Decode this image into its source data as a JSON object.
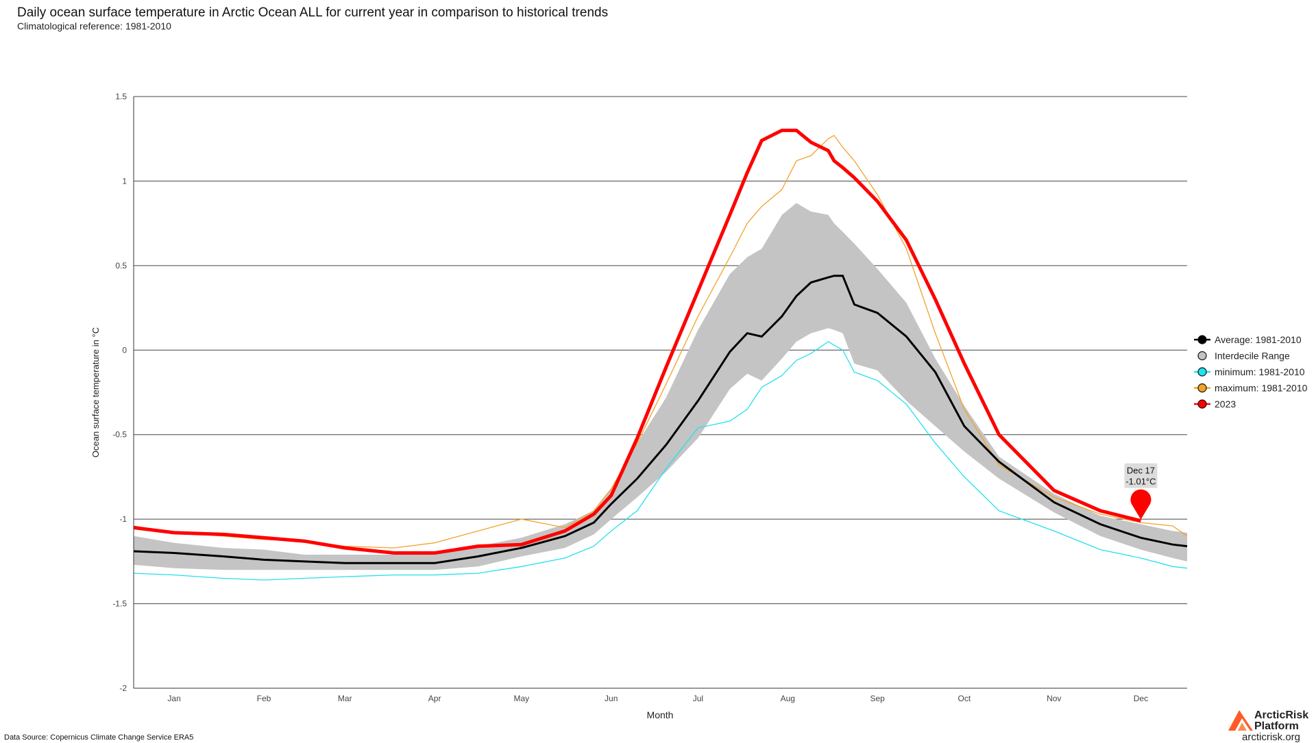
{
  "header": {
    "title": "Daily ocean surface temperature in Arctic Ocean ALL for current year in comparison to historical trends",
    "subtitle": "Climatological reference: 1981-2010"
  },
  "footer": {
    "source": "Data Source: Copernicus Climate Change Service ERA5",
    "logo_name": "ArcticRisk Platform",
    "logo_url": "arcticrisk.org"
  },
  "colors": {
    "average": "#000000",
    "interdecile": "#c4c4c4",
    "minimum": "#22e0ee",
    "maximum": "#f2a22a",
    "current": "#ff0000",
    "grid": "#444444"
  },
  "chart_data": {
    "type": "line",
    "xlabel": "Month",
    "ylabel": "Ocean surface temperature in °C",
    "ylim": [
      -2,
      1.5
    ],
    "xlim": [
      1,
      365
    ],
    "yticks": [
      1.5,
      1,
      0.5,
      0,
      -0.5,
      -1,
      -1.5,
      -2
    ],
    "ytick_labels": [
      "1.5",
      "1",
      "0.5",
      "0",
      "-0.5",
      "-1",
      "-1.5",
      "-2"
    ],
    "xticks": [
      {
        "label": "Jan",
        "day": 15
      },
      {
        "label": "Feb",
        "day": 46
      },
      {
        "label": "Mar",
        "day": 74
      },
      {
        "label": "Apr",
        "day": 105
      },
      {
        "label": "May",
        "day": 135
      },
      {
        "label": "Jun",
        "day": 166
      },
      {
        "label": "Jul",
        "day": 196
      },
      {
        "label": "Aug",
        "day": 227
      },
      {
        "label": "Sep",
        "day": 258
      },
      {
        "label": "Oct",
        "day": 288
      },
      {
        "label": "Nov",
        "day": 319
      },
      {
        "label": "Dec",
        "day": 349
      }
    ],
    "grid": true,
    "legend_position": "right",
    "legend": [
      {
        "name": "Average: 1981-2010",
        "key": "average"
      },
      {
        "name": "Interdecile Range",
        "key": "interdecile"
      },
      {
        "name": "minimum: 1981-2010",
        "key": "minimum"
      },
      {
        "name": "maximum: 1981-2010",
        "key": "maximum"
      },
      {
        "name": "2023",
        "key": "current"
      }
    ],
    "series": [
      {
        "name": "Average: 1981-2010",
        "key": "average",
        "x": [
          1,
          15,
          32,
          46,
          60,
          74,
          91,
          105,
          120,
          135,
          150,
          160,
          166,
          175,
          185,
          196,
          207,
          213,
          218,
          225,
          230,
          235,
          241,
          243,
          246,
          250,
          258,
          268,
          278,
          288,
          300,
          319,
          335,
          349,
          360,
          365
        ],
        "y": [
          -1.19,
          -1.2,
          -1.22,
          -1.24,
          -1.25,
          -1.26,
          -1.26,
          -1.26,
          -1.22,
          -1.17,
          -1.1,
          -1.02,
          -0.91,
          -0.76,
          -0.56,
          -0.3,
          -0.01,
          0.1,
          0.08,
          0.2,
          0.32,
          0.4,
          0.43,
          0.44,
          0.44,
          0.27,
          0.22,
          0.08,
          -0.13,
          -0.45,
          -0.66,
          -0.9,
          -1.03,
          -1.11,
          -1.15,
          -1.16
        ]
      },
      {
        "name": "Interdecile Range",
        "key": "interdecile",
        "x": [
          1,
          15,
          32,
          46,
          60,
          74,
          91,
          105,
          120,
          135,
          150,
          160,
          166,
          175,
          185,
          196,
          207,
          213,
          218,
          225,
          230,
          235,
          241,
          243,
          246,
          250,
          258,
          268,
          278,
          288,
          300,
          319,
          335,
          349,
          360,
          365
        ],
        "upper": [
          -1.1,
          -1.14,
          -1.17,
          -1.18,
          -1.21,
          -1.21,
          -1.21,
          -1.21,
          -1.16,
          -1.11,
          -1.03,
          -0.95,
          -0.82,
          -0.55,
          -0.28,
          0.12,
          0.45,
          0.55,
          0.6,
          0.8,
          0.87,
          0.82,
          0.8,
          0.75,
          0.7,
          0.63,
          0.48,
          0.28,
          -0.05,
          -0.33,
          -0.63,
          -0.85,
          -0.98,
          -1.03,
          -1.07,
          -1.08
        ],
        "lower": [
          -1.27,
          -1.29,
          -1.3,
          -1.3,
          -1.3,
          -1.3,
          -1.3,
          -1.3,
          -1.28,
          -1.22,
          -1.17,
          -1.09,
          -1.0,
          -0.87,
          -0.72,
          -0.52,
          -0.23,
          -0.14,
          -0.18,
          -0.05,
          0.05,
          0.1,
          0.13,
          0.12,
          0.1,
          -0.08,
          -0.12,
          -0.3,
          -0.45,
          -0.6,
          -0.76,
          -0.96,
          -1.1,
          -1.18,
          -1.23,
          -1.25
        ]
      },
      {
        "name": "minimum: 1981-2010",
        "key": "minimum",
        "x": [
          1,
          15,
          32,
          46,
          60,
          74,
          91,
          105,
          120,
          135,
          150,
          160,
          166,
          175,
          185,
          196,
          207,
          213,
          218,
          225,
          230,
          235,
          241,
          243,
          246,
          250,
          258,
          268,
          278,
          288,
          300,
          319,
          335,
          349,
          360,
          365
        ],
        "y": [
          -1.32,
          -1.33,
          -1.35,
          -1.36,
          -1.35,
          -1.34,
          -1.33,
          -1.33,
          -1.32,
          -1.28,
          -1.23,
          -1.16,
          -1.07,
          -0.95,
          -0.7,
          -0.46,
          -0.42,
          -0.35,
          -0.22,
          -0.15,
          -0.06,
          -0.02,
          0.05,
          0.03,
          0.0,
          -0.13,
          -0.18,
          -0.32,
          -0.55,
          -0.75,
          -0.95,
          -1.07,
          -1.18,
          -1.23,
          -1.28,
          -1.29
        ]
      },
      {
        "name": "maximum: 1981-2010",
        "key": "maximum",
        "x": [
          1,
          15,
          32,
          46,
          60,
          74,
          91,
          105,
          120,
          135,
          150,
          160,
          166,
          175,
          185,
          196,
          207,
          213,
          218,
          225,
          230,
          235,
          241,
          243,
          246,
          250,
          258,
          268,
          278,
          288,
          300,
          319,
          335,
          349,
          360,
          365
        ],
        "y": [
          -1.04,
          -1.08,
          -1.1,
          -1.12,
          -1.13,
          -1.16,
          -1.17,
          -1.14,
          -1.07,
          -1.0,
          -1.05,
          -0.95,
          -0.82,
          -0.55,
          -0.2,
          0.2,
          0.55,
          0.75,
          0.85,
          0.95,
          1.12,
          1.15,
          1.25,
          1.27,
          1.2,
          1.12,
          0.92,
          0.6,
          0.1,
          -0.35,
          -0.68,
          -0.87,
          -0.97,
          -1.02,
          -1.04,
          -1.1
        ]
      },
      {
        "name": "2023",
        "key": "current",
        "x": [
          1,
          15,
          32,
          46,
          60,
          74,
          91,
          105,
          120,
          135,
          150,
          160,
          166,
          175,
          185,
          196,
          207,
          213,
          218,
          225,
          230,
          235,
          241,
          243,
          246,
          250,
          258,
          268,
          278,
          288,
          300,
          319,
          335,
          349
        ],
        "y": [
          -1.05,
          -1.08,
          -1.09,
          -1.11,
          -1.13,
          -1.17,
          -1.2,
          -1.2,
          -1.16,
          -1.15,
          -1.07,
          -0.97,
          -0.86,
          -0.52,
          -0.1,
          0.35,
          0.8,
          1.05,
          1.24,
          1.3,
          1.3,
          1.23,
          1.18,
          1.12,
          1.08,
          1.02,
          0.88,
          0.65,
          0.3,
          -0.08,
          -0.5,
          -0.83,
          -0.95,
          -1.01
        ]
      }
    ],
    "annotation": {
      "date": "Dec 17",
      "value": "-1.01°C",
      "day": 349,
      "y": -1.01
    }
  }
}
